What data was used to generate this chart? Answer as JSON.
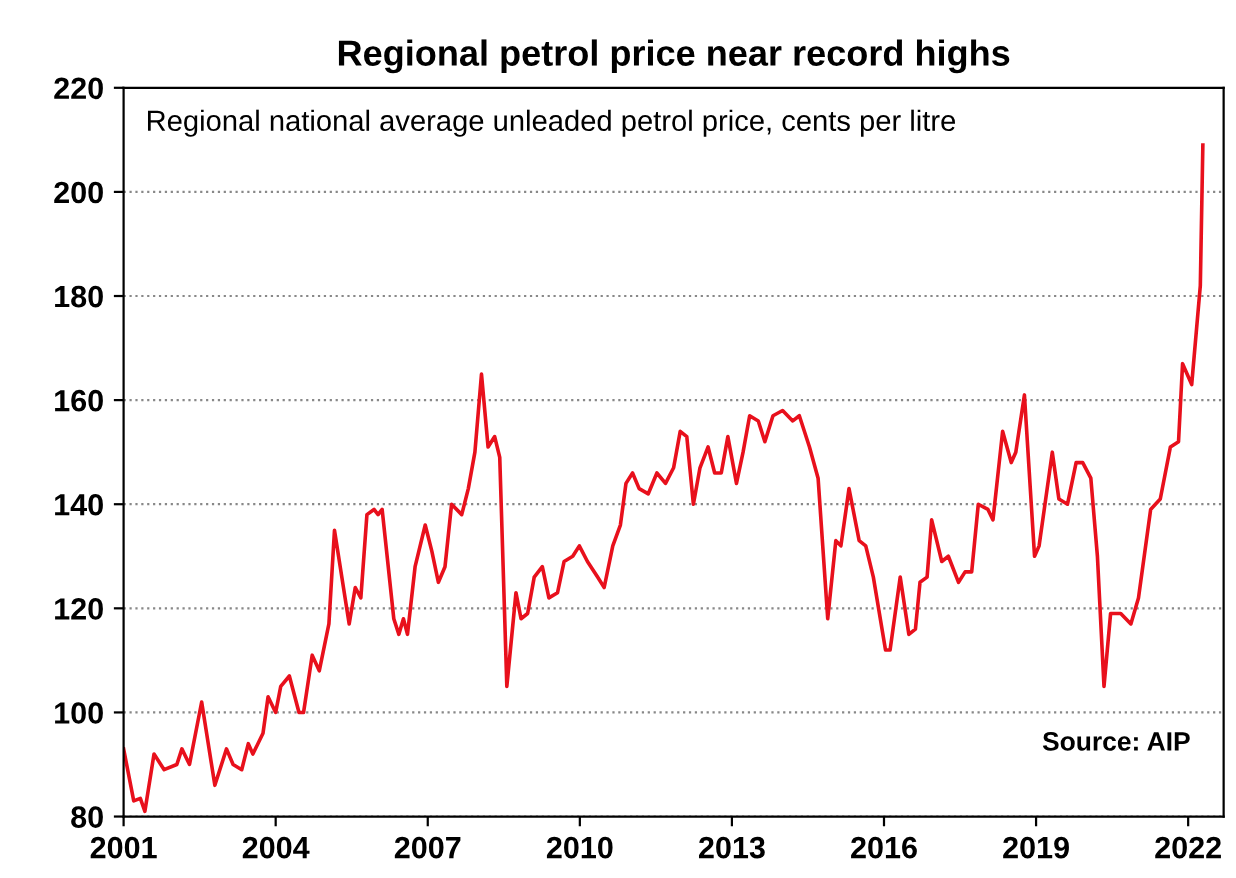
{
  "chart_data": {
    "type": "line",
    "title": "Regional petrol price near record highs",
    "subtitle": "Regional national average unleaded petrol price, cents per litre",
    "annotations": [
      "Source: AIP"
    ],
    "x": [
      2001.0,
      2001.2,
      2001.33,
      2001.42,
      2001.6,
      2001.8,
      2002.05,
      2002.15,
      2002.3,
      2002.54,
      2002.8,
      2003.03,
      2003.16,
      2003.33,
      2003.46,
      2003.55,
      2003.75,
      2003.85,
      2004.0,
      2004.1,
      2004.27,
      2004.46,
      2004.55,
      2004.72,
      2004.86,
      2005.05,
      2005.16,
      2005.45,
      2005.57,
      2005.68,
      2005.8,
      2005.94,
      2006.02,
      2006.1,
      2006.33,
      2006.43,
      2006.52,
      2006.6,
      2006.75,
      2006.95,
      2007.08,
      2007.21,
      2007.34,
      2007.47,
      2007.67,
      2007.8,
      2007.93,
      2008.06,
      2008.19,
      2008.32,
      2008.42,
      2008.56,
      2008.74,
      2008.84,
      2008.97,
      2009.1,
      2009.26,
      2009.39,
      2009.56,
      2009.69,
      2009.86,
      2009.99,
      2010.15,
      2010.35,
      2010.48,
      2010.65,
      2010.8,
      2010.91,
      2011.04,
      2011.17,
      2011.35,
      2011.52,
      2011.69,
      2011.85,
      2011.98,
      2012.11,
      2012.24,
      2012.37,
      2012.53,
      2012.66,
      2012.79,
      2012.92,
      2013.09,
      2013.22,
      2013.35,
      2013.52,
      2013.65,
      2013.81,
      2014.0,
      2014.2,
      2014.33,
      2014.53,
      2014.7,
      2014.89,
      2015.05,
      2015.15,
      2015.31,
      2015.51,
      2015.64,
      2015.79,
      2016.03,
      2016.12,
      2016.32,
      2016.49,
      2016.62,
      2016.71,
      2016.85,
      2016.94,
      2017.14,
      2017.27,
      2017.47,
      2017.6,
      2017.73,
      2017.86,
      2018.05,
      2018.15,
      2018.34,
      2018.51,
      2018.6,
      2018.77,
      2018.97,
      2019.06,
      2019.32,
      2019.45,
      2019.62,
      2019.79,
      2019.92,
      2020.08,
      2020.21,
      2020.34,
      2020.47,
      2020.67,
      2020.87,
      2021.02,
      2021.26,
      2021.45,
      2021.65,
      2021.81,
      2021.89,
      2022.07,
      2022.24,
      2022.29
    ],
    "series": [
      {
        "color": "#e8101c",
        "values": [
          93,
          83,
          83.5,
          81,
          92,
          89,
          90,
          93,
          90,
          102,
          86,
          93,
          90,
          89,
          94,
          92,
          96,
          103,
          100,
          105,
          107,
          100,
          100,
          111,
          108,
          117,
          135,
          117,
          124,
          122,
          138,
          139,
          138,
          139,
          118,
          115,
          118,
          115,
          128,
          136,
          131,
          125,
          128,
          140,
          138,
          143,
          150,
          165,
          151,
          153,
          149,
          105,
          123,
          118,
          119,
          126,
          128,
          122,
          123,
          129,
          130,
          132,
          129,
          126,
          124,
          132,
          136,
          144,
          146,
          143,
          142,
          146,
          144,
          147,
          154,
          153,
          140,
          147,
          151,
          146,
          146,
          153,
          144,
          150,
          157,
          156,
          152,
          157,
          158,
          156,
          157,
          151,
          145,
          118,
          133,
          132,
          143,
          133,
          132,
          126,
          112,
          112,
          126,
          115,
          116,
          125,
          126,
          137,
          129,
          130,
          125,
          127,
          127,
          140,
          139,
          137,
          154,
          148,
          150,
          161,
          130,
          132,
          150,
          141,
          140,
          148,
          148,
          145,
          130,
          105,
          119,
          119,
          117,
          122,
          139,
          141,
          151,
          152,
          167,
          163,
          182,
          209
        ]
      }
    ],
    "xlim": [
      2001,
      2022.7
    ],
    "ylim": [
      80,
      220
    ],
    "xticks": [
      2001,
      2004,
      2007,
      2010,
      2013,
      2016,
      2019,
      2022
    ],
    "yticks": [
      80,
      100,
      120,
      140,
      160,
      180,
      200,
      220
    ],
    "grid": "y",
    "legend": false,
    "line_style": "solid",
    "marker": "none"
  }
}
